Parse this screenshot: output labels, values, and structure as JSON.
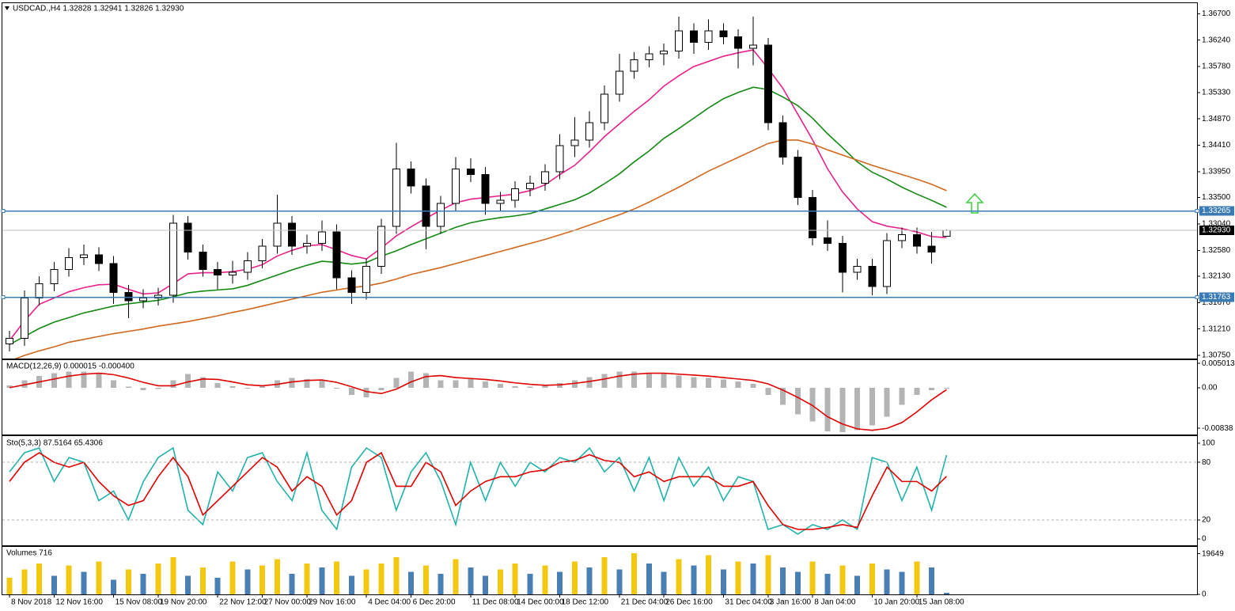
{
  "chart_data": [
    {
      "type": "candlestick",
      "title": "USDCAD.,H4  1.32828 1.32941 1.32826 1.32930",
      "categories": [
        "8 Nov 2018",
        null,
        null,
        "12 Nov 16:00",
        null,
        null,
        null,
        "15 Nov 08:00",
        null,
        null,
        "19 Nov 20:00",
        null,
        null,
        null,
        "22 Nov 12:00",
        null,
        null,
        "27 Nov 00:00",
        null,
        null,
        "29 Nov 16:00",
        null,
        null,
        null,
        "4 Dec 04:00",
        null,
        null,
        "6 Dec 20:00",
        null,
        null,
        null,
        "11 Dec 08:00",
        null,
        null,
        "14 Dec 00:00",
        null,
        null,
        "18 Dec 12:00",
        null,
        null,
        null,
        "21 Dec 04:00",
        null,
        null,
        "26 Dec 16:00",
        null,
        null,
        null,
        "31 Dec 04:00",
        null,
        null,
        "3 Jan 16:00",
        null,
        null,
        "8 Jan 04:00",
        null,
        null,
        null,
        "10 Jan 20:00",
        null,
        null,
        "15 Jan 08:00",
        null,
        null
      ],
      "open": [
        1.3095,
        1.3105,
        1.3175,
        1.32,
        1.3225,
        1.3245,
        1.325,
        1.3235,
        1.3185,
        1.317,
        1.3175,
        1.318,
        1.3305,
        1.3255,
        1.3225,
        1.3215,
        1.322,
        1.324,
        1.3265,
        1.3305,
        1.3265,
        1.327,
        1.329,
        1.321,
        1.3185,
        1.323,
        1.33,
        1.34,
        1.337,
        1.33,
        1.334,
        1.34,
        1.339,
        1.334,
        1.3345,
        1.3365,
        1.3375,
        1.3395,
        1.344,
        1.345,
        1.348,
        1.353,
        1.357,
        1.359,
        1.36,
        1.3605,
        1.364,
        1.362,
        1.364,
        1.363,
        1.361,
        1.3615,
        1.348,
        1.342,
        1.335,
        1.328,
        1.327,
        1.322,
        1.323,
        1.3195,
        1.3275,
        1.3285,
        1.3265,
        1.32828
      ],
      "high": [
        1.3118,
        1.3188,
        1.3213,
        1.3238,
        1.3262,
        1.3268,
        1.3263,
        1.3248,
        1.3198,
        1.319,
        1.3193,
        1.332,
        1.3318,
        1.3268,
        1.3238,
        1.324,
        1.3255,
        1.3278,
        1.3355,
        1.3318,
        1.3285,
        1.331,
        1.3303,
        1.3223,
        1.3243,
        1.3313,
        1.3445,
        1.3413,
        1.3383,
        1.3353,
        1.342,
        1.3418,
        1.3403,
        1.336,
        1.3378,
        1.3388,
        1.3408,
        1.346,
        1.349,
        1.35,
        1.3545,
        1.36,
        1.3603,
        1.3613,
        1.3618,
        1.3665,
        1.3653,
        1.366,
        1.3653,
        1.3643,
        1.3665,
        1.3628,
        1.3493,
        1.3433,
        1.3363,
        1.331,
        1.3283,
        1.3243,
        1.3243,
        1.3288,
        1.3298,
        1.3298,
        1.329,
        1.32941
      ],
      "low": [
        1.3082,
        1.3092,
        1.3162,
        1.3187,
        1.3212,
        1.3232,
        1.3222,
        1.3165,
        1.314,
        1.3157,
        1.3162,
        1.3167,
        1.3242,
        1.3212,
        1.319,
        1.32,
        1.3207,
        1.3227,
        1.3252,
        1.325,
        1.3252,
        1.3257,
        1.319,
        1.3165,
        1.3172,
        1.3217,
        1.3287,
        1.3357,
        1.326,
        1.3287,
        1.3327,
        1.3377,
        1.332,
        1.3327,
        1.3332,
        1.3352,
        1.3362,
        1.3382,
        1.342,
        1.3437,
        1.3467,
        1.3517,
        1.3557,
        1.3577,
        1.358,
        1.3592,
        1.36,
        1.3607,
        1.3617,
        1.3575,
        1.358,
        1.3467,
        1.3407,
        1.3337,
        1.3267,
        1.3257,
        1.3185,
        1.3207,
        1.318,
        1.3182,
        1.3262,
        1.3252,
        1.3235,
        1.32826
      ],
      "close": [
        1.3105,
        1.3175,
        1.32,
        1.3225,
        1.3245,
        1.325,
        1.3235,
        1.3185,
        1.317,
        1.3175,
        1.318,
        1.3305,
        1.3255,
        1.3225,
        1.3215,
        1.322,
        1.324,
        1.3265,
        1.3305,
        1.3265,
        1.327,
        1.329,
        1.321,
        1.3185,
        1.323,
        1.33,
        1.34,
        1.337,
        1.33,
        1.334,
        1.34,
        1.339,
        1.334,
        1.3345,
        1.3365,
        1.3375,
        1.3395,
        1.344,
        1.345,
        1.348,
        1.353,
        1.357,
        1.359,
        1.36,
        1.3605,
        1.364,
        1.362,
        1.364,
        1.363,
        1.361,
        1.3615,
        1.348,
        1.342,
        1.335,
        1.328,
        1.327,
        1.322,
        1.323,
        1.3195,
        1.3275,
        1.3285,
        1.3265,
        1.3255,
        1.3293
      ],
      "up_color": "#ffffff",
      "down_color": "#000000",
      "series": [
        {
          "color": "#e8218c",
          "values": [
            1.3101,
            1.3135,
            1.3164,
            1.3175,
            1.3186,
            1.3193,
            1.3198,
            1.3199,
            1.319,
            1.3182,
            1.3184,
            1.32,
            1.3217,
            1.3219,
            1.3219,
            1.3221,
            1.3225,
            1.3233,
            1.3248,
            1.3258,
            1.3266,
            1.3268,
            1.3259,
            1.3249,
            1.3243,
            1.3262,
            1.3283,
            1.3299,
            1.3314,
            1.3328,
            1.3341,
            1.3347,
            1.335,
            1.3353,
            1.3356,
            1.3362,
            1.3372,
            1.339,
            1.3406,
            1.343,
            1.3456,
            1.3478,
            1.35,
            1.352,
            1.3544,
            1.3562,
            1.3578,
            1.3587,
            1.3596,
            1.3602,
            1.3607,
            1.3575,
            1.354,
            1.3495,
            1.345,
            1.34,
            1.336,
            1.333,
            1.3308,
            1.33,
            1.3296,
            1.329,
            1.3282,
            1.328
          ]
        },
        {
          "color": "#138a13",
          "values": [
            1.3094,
            1.3108,
            1.3122,
            1.3133,
            1.3141,
            1.3149,
            1.3155,
            1.3161,
            1.3165,
            1.3168,
            1.3171,
            1.3177,
            1.3184,
            1.3187,
            1.3189,
            1.3191,
            1.3197,
            1.3206,
            1.3215,
            1.3224,
            1.3232,
            1.3239,
            1.3237,
            1.3234,
            1.3237,
            1.3248,
            1.3257,
            1.3268,
            1.3278,
            1.3288,
            1.3298,
            1.3306,
            1.3311,
            1.3315,
            1.3318,
            1.3322,
            1.333,
            1.3338,
            1.3346,
            1.3358,
            1.3374,
            1.3391,
            1.3412,
            1.3431,
            1.3453,
            1.347,
            1.3488,
            1.3506,
            1.3522,
            1.3533,
            1.3542,
            1.3538,
            1.3525,
            1.351,
            1.3488,
            1.3461,
            1.3437,
            1.3412,
            1.3394,
            1.3382,
            1.3368,
            1.3356,
            1.3345,
            1.3333
          ]
        },
        {
          "color": "#d2691e",
          "values": [
            1.3065,
            1.3075,
            1.3083,
            1.309,
            1.3098,
            1.3103,
            1.3108,
            1.3113,
            1.3117,
            1.3121,
            1.3126,
            1.313,
            1.3134,
            1.3139,
            1.3144,
            1.315,
            1.3155,
            1.3161,
            1.3167,
            1.3173,
            1.3179,
            1.3185,
            1.3189,
            1.3193,
            1.3196,
            1.3201,
            1.3208,
            1.3216,
            1.3222,
            1.3228,
            1.3235,
            1.3242,
            1.3249,
            1.3256,
            1.3263,
            1.327,
            1.3277,
            1.3285,
            1.3293,
            1.3302,
            1.3311,
            1.332,
            1.333,
            1.3342,
            1.3355,
            1.3368,
            1.3382,
            1.3396,
            1.3408,
            1.342,
            1.3432,
            1.3444,
            1.345,
            1.345,
            1.3443,
            1.3433,
            1.3424,
            1.3415,
            1.3406,
            1.3398,
            1.339,
            1.3382,
            1.3373,
            1.3362
          ]
        }
      ],
      "ylim": [
        1.3071,
        1.3687
      ],
      "yticks": [
        {
          "value": 1.367,
          "label": "1.36700"
        },
        {
          "value": 1.3624,
          "label": "1.36240"
        },
        {
          "value": 1.3578,
          "label": "1.35780"
        },
        {
          "value": 1.3533,
          "label": "1.35330"
        },
        {
          "value": 1.3487,
          "label": "1.34870"
        },
        {
          "value": 1.3441,
          "label": "1.34410"
        },
        {
          "value": 1.3395,
          "label": "1.33950"
        },
        {
          "value": 1.335,
          "label": "1.33500"
        },
        {
          "value": 1.3304,
          "label": "1.33040"
        },
        {
          "value": 1.3258,
          "label": "1.32580"
        },
        {
          "value": 1.3213,
          "label": "1.32130"
        },
        {
          "value": 1.3167,
          "label": "1.31670"
        },
        {
          "value": 1.3121,
          "label": "1.31210"
        },
        {
          "value": 1.3075,
          "label": "1.30750"
        }
      ],
      "hlines": [
        {
          "value": 1.33265,
          "label": "1.33265",
          "color": "#3b7bb5"
        },
        {
          "value": 1.31763,
          "label": "1.31763",
          "color": "#3b7bb5"
        }
      ],
      "bid": {
        "value": 1.3293,
        "label": "1.32930",
        "color": "#c0c0c0"
      }
    },
    {
      "type": "macd",
      "title": "MACD(12,26,9) 0.000015 -0.000400",
      "values": [
        0.0005,
        0.0015,
        0.0024,
        0.003,
        0.0033,
        0.0033,
        0.0028,
        0.0015,
        0.0002,
        -0.0005,
        -0.0003,
        0.0015,
        0.0028,
        0.0022,
        0.001,
        0.0003,
        0.0,
        0.0005,
        0.0015,
        0.002,
        0.0018,
        0.0015,
        0.0,
        -0.0015,
        -0.002,
        -0.0005,
        0.002,
        0.0033,
        0.003,
        0.0015,
        0.0015,
        0.0018,
        0.0013,
        0.0008,
        0.0003,
        0.0002,
        0.0005,
        0.001,
        0.0015,
        0.0022,
        0.0028,
        0.0033,
        0.0033,
        0.003,
        0.0028,
        0.0025,
        0.0022,
        0.002,
        0.0017,
        0.0013,
        0.0008,
        -0.0015,
        -0.0035,
        -0.0055,
        -0.007,
        -0.009,
        -0.0092,
        -0.0088,
        -0.0078,
        -0.006,
        -0.0035,
        -0.0015,
        -0.0005,
        1.5e-05
      ],
      "color": "#b4b4b4",
      "signal": {
        "color": "#e00000",
        "values": [
          0,
          0.0006,
          0.0012,
          0.0018,
          0.0024,
          0.0028,
          0.003,
          0.0027,
          0.002,
          0.0011,
          0.0004,
          0.0004,
          0.0012,
          0.0018,
          0.0017,
          0.0012,
          0.0006,
          0.0004,
          0.0007,
          0.0012,
          0.0015,
          0.0016,
          0.0011,
          0.0002,
          -0.0008,
          -0.0012,
          -0.0003,
          0.0012,
          0.0023,
          0.0025,
          0.0021,
          0.0019,
          0.0017,
          0.0014,
          0.001,
          0.0007,
          0.0005,
          0.0006,
          0.0009,
          0.0013,
          0.0018,
          0.0024,
          0.0028,
          0.003,
          0.003,
          0.0028,
          0.0026,
          0.0024,
          0.0021,
          0.0018,
          0.0015,
          0.0008,
          -0.0005,
          -0.002,
          -0.0037,
          -0.006,
          -0.0075,
          -0.0085,
          -0.0088,
          -0.0084,
          -0.0072,
          -0.005,
          -0.0025,
          -0.0004
        ]
      },
      "ylim": [
        -0.0095,
        0.0057
      ],
      "yticks": [
        0.005013,
        {
          "value": 0,
          "label": "0.00"
        },
        -0.00838
      ]
    },
    {
      "type": "stochastic",
      "title": "Sto(5,3,3) 87.5164 65.4306",
      "series": [
        {
          "color": "#20b2aa",
          "values": [
            70,
            90,
            95,
            60,
            85,
            80,
            40,
            50,
            20,
            60,
            85,
            95,
            30,
            15,
            70,
            50,
            85,
            90,
            60,
            40,
            90,
            30,
            10,
            75,
            95,
            85,
            30,
            70,
            90,
            60,
            15,
            80,
            40,
            80,
            55,
            80,
            70,
            85,
            80,
            95,
            70,
            85,
            50,
            85,
            40,
            85,
            55,
            75,
            40,
            65,
            60,
            10,
            15,
            5,
            15,
            10,
            20,
            10,
            85,
            80,
            40,
            75,
            30,
            87.5164
          ]
        },
        {
          "color": "#e00000",
          "values": [
            60,
            80,
            90,
            80,
            75,
            80,
            60,
            45,
            35,
            40,
            65,
            85,
            65,
            25,
            40,
            55,
            70,
            85,
            75,
            50,
            65,
            55,
            25,
            40,
            80,
            90,
            55,
            55,
            80,
            70,
            35,
            50,
            60,
            65,
            65,
            70,
            72,
            80,
            82,
            88,
            82,
            80,
            65,
            70,
            60,
            65,
            65,
            65,
            55,
            55,
            60,
            35,
            15,
            10,
            10,
            12,
            15,
            12,
            45,
            75,
            60,
            60,
            50,
            65.4306
          ]
        }
      ],
      "ylim": [
        -5.8,
        107.4
      ],
      "yticks": [
        100,
        80,
        20,
        0
      ],
      "levels": [
        80,
        20
      ]
    },
    {
      "type": "volume",
      "title": "Volumes 716",
      "values": [
        8000,
        12000,
        15000,
        9000,
        14000,
        11000,
        16000,
        7000,
        12000,
        10000,
        15000,
        18000,
        9000,
        13000,
        8000,
        16000,
        12000,
        14000,
        17000,
        10000,
        15000,
        13000,
        16000,
        9000,
        12000,
        15000,
        18000,
        11000,
        14000,
        10000,
        17000,
        13000,
        9000,
        12000,
        15000,
        10000,
        14000,
        11000,
        16000,
        13000,
        18000,
        12000,
        20000,
        15000,
        11000,
        17000,
        14000,
        19000,
        12000,
        16000,
        15000,
        19000,
        13000,
        11000,
        16000,
        10000,
        14000,
        9000,
        15000,
        12000,
        11000,
        16000,
        13000,
        716
      ],
      "up_color": "#f2c811",
      "down_color": "#4a7fb5",
      "ylim": [
        0,
        23000
      ],
      "yticks": [
        19649,
        0
      ]
    }
  ]
}
